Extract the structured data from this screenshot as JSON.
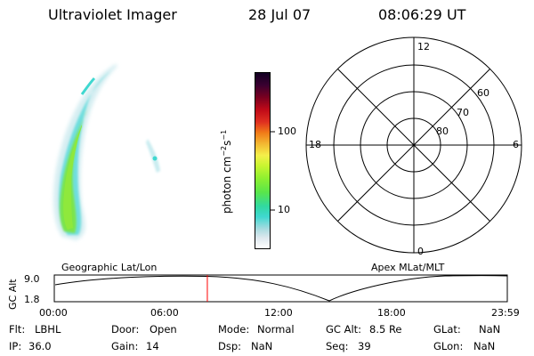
{
  "header": {
    "instrument": "Ultraviolet Imager",
    "date": "28 Jul 07",
    "time": "08:06:29 UT"
  },
  "colorbar": {
    "unit": "photon cm^-2 s^-1",
    "ticks": [
      {
        "label": "100",
        "value": 100
      },
      {
        "label": "10",
        "value": 10
      }
    ],
    "colors_top_to_bottom": [
      "#120022",
      "#7a0020",
      "#c00a18",
      "#f07a18",
      "#f4f04a",
      "#8ff030",
      "#31d9a0",
      "#3fd8d0",
      "#a9dbe0",
      "#ffffff"
    ]
  },
  "polar_plot": {
    "mlt_labels": {
      "top": "12",
      "left": "18",
      "right": "6",
      "bottom": "0"
    },
    "lat_labels": [
      "60",
      "70",
      "80"
    ]
  },
  "timeline": {
    "left_title": "Geographic Lat/Lon",
    "right_title": "Apex  MLat/MLT",
    "ylabel": "GC Alt",
    "y_ticks": [
      "9.0",
      "1.8"
    ],
    "x_ticks": [
      "00:00",
      "06:00",
      "12:00",
      "18:00",
      "23:59"
    ],
    "current_time_hours": 8.108,
    "accent_color": "#ff0000"
  },
  "info": {
    "flt_label": "Flt:",
    "flt_value": "LBHL",
    "door_label": "Door:",
    "door_value": "Open",
    "mode_label": "Mode:",
    "mode_value": "Normal",
    "gcalt_label": "GC Alt:",
    "gcalt_value": "8.5 Re",
    "glat_label": "GLat:",
    "glat_value": "NaN",
    "ip_label": "IP:",
    "ip_value": "36.0",
    "gain_label": "Gain:",
    "gain_value": "14",
    "dsp_label": "Dsp:",
    "dsp_value": "NaN",
    "seq_label": "Seq:",
    "seq_value": "39",
    "glon_label": "GLon:",
    "glon_value": "NaN"
  }
}
